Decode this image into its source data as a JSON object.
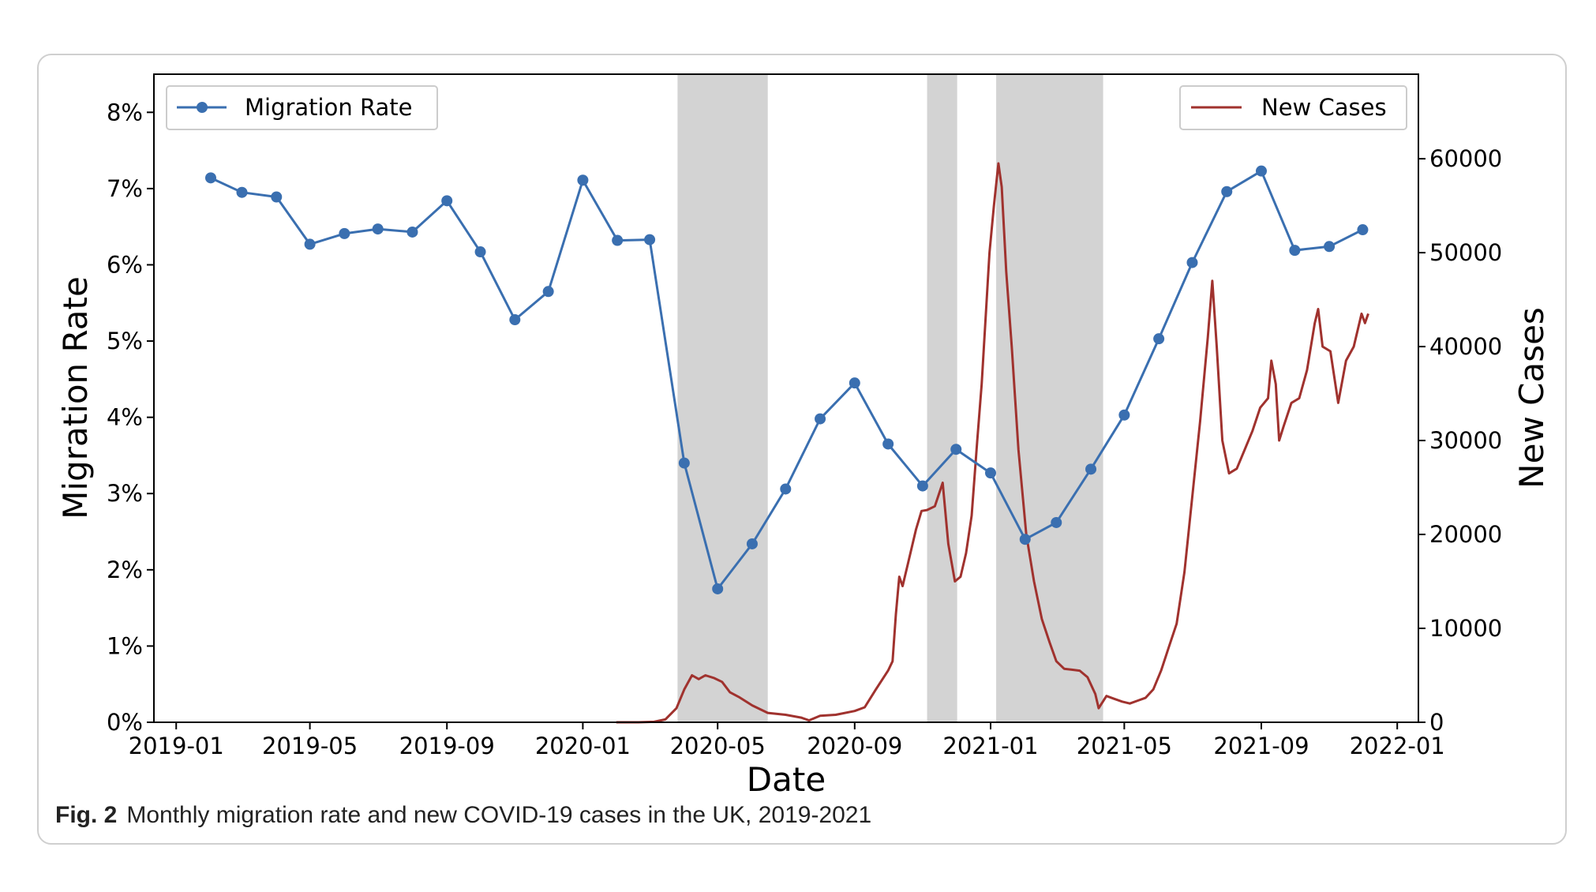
{
  "chart_data": {
    "type": "line",
    "xlabel": "Date",
    "ylabel_left": "Migration Rate",
    "ylabel_right": "New Cases",
    "x_ticks": [
      "2019-01",
      "2019-05",
      "2019-09",
      "2020-01",
      "2020-05",
      "2020-09",
      "2021-01",
      "2021-05",
      "2021-09",
      "2022-01"
    ],
    "y_left_ticks": [
      "0%",
      "1%",
      "2%",
      "3%",
      "4%",
      "5%",
      "6%",
      "7%",
      "8%"
    ],
    "y_left_lim": [
      0,
      8.5
    ],
    "y_right_ticks": [
      "0",
      "10000",
      "20000",
      "30000",
      "40000",
      "50000",
      "60000"
    ],
    "y_right_lim": [
      0,
      69000
    ],
    "x_lim": [
      "2018-12-12",
      "2022-01-20"
    ],
    "shaded_periods": [
      [
        "2020-03-26",
        "2020-06-15"
      ],
      [
        "2020-11-05",
        "2020-12-02"
      ],
      [
        "2021-01-06",
        "2021-04-12"
      ]
    ],
    "legend_left": {
      "label": "Migration Rate",
      "position": "upper left"
    },
    "legend_right": {
      "label": "New Cases",
      "position": "upper right"
    },
    "series": [
      {
        "name": "Migration Rate",
        "color": "#3a6fb0",
        "marker": "circle",
        "axis": "left",
        "points": [
          [
            "2019-02-01",
            7.14
          ],
          [
            "2019-03-01",
            6.95
          ],
          [
            "2019-04-01",
            6.89
          ],
          [
            "2019-05-01",
            6.27
          ],
          [
            "2019-06-01",
            6.41
          ],
          [
            "2019-07-01",
            6.47
          ],
          [
            "2019-08-01",
            6.43
          ],
          [
            "2019-09-01",
            6.84
          ],
          [
            "2019-10-01",
            6.17
          ],
          [
            "2019-11-01",
            5.28
          ],
          [
            "2019-12-01",
            5.65
          ],
          [
            "2020-01-01",
            7.11
          ],
          [
            "2020-02-01",
            6.32
          ],
          [
            "2020-03-01",
            6.33
          ],
          [
            "2020-04-01",
            3.4
          ],
          [
            "2020-05-01",
            1.75
          ],
          [
            "2020-06-01",
            2.34
          ],
          [
            "2020-07-01",
            3.06
          ],
          [
            "2020-08-01",
            3.98
          ],
          [
            "2020-09-01",
            4.45
          ],
          [
            "2020-10-01",
            3.65
          ],
          [
            "2020-11-01",
            3.1
          ],
          [
            "2020-12-01",
            3.58
          ],
          [
            "2021-01-01",
            3.27
          ],
          [
            "2021-02-01",
            2.4
          ],
          [
            "2021-03-01",
            2.62
          ],
          [
            "2021-04-01",
            3.32
          ],
          [
            "2021-05-01",
            4.03
          ],
          [
            "2021-06-01",
            5.03
          ],
          [
            "2021-07-01",
            6.03
          ],
          [
            "2021-08-01",
            6.96
          ],
          [
            "2021-09-01",
            7.23
          ],
          [
            "2021-10-01",
            6.19
          ],
          [
            "2021-11-01",
            6.24
          ],
          [
            "2021-12-01",
            6.46
          ]
        ]
      },
      {
        "name": "New Cases",
        "color": "#a0322e",
        "marker": "none",
        "axis": "right",
        "points": [
          [
            "2020-01-31",
            0
          ],
          [
            "2020-02-20",
            0
          ],
          [
            "2020-03-05",
            50
          ],
          [
            "2020-03-15",
            300
          ],
          [
            "2020-03-25",
            1500
          ],
          [
            "2020-04-01",
            3500
          ],
          [
            "2020-04-08",
            5000
          ],
          [
            "2020-04-14",
            4600
          ],
          [
            "2020-04-20",
            5000
          ],
          [
            "2020-04-28",
            4700
          ],
          [
            "2020-05-05",
            4300
          ],
          [
            "2020-05-12",
            3200
          ],
          [
            "2020-05-20",
            2700
          ],
          [
            "2020-06-01",
            1800
          ],
          [
            "2020-06-15",
            1000
          ],
          [
            "2020-07-01",
            800
          ],
          [
            "2020-07-15",
            500
          ],
          [
            "2020-07-22",
            200
          ],
          [
            "2020-08-01",
            700
          ],
          [
            "2020-08-15",
            800
          ],
          [
            "2020-09-01",
            1200
          ],
          [
            "2020-09-10",
            1600
          ],
          [
            "2020-09-20",
            3500
          ],
          [
            "2020-10-01",
            5500
          ],
          [
            "2020-10-05",
            6500
          ],
          [
            "2020-10-08",
            11500
          ],
          [
            "2020-10-11",
            15500
          ],
          [
            "2020-10-14",
            14500
          ],
          [
            "2020-10-19",
            17000
          ],
          [
            "2020-10-26",
            20500
          ],
          [
            "2020-10-31",
            22500
          ],
          [
            "2020-11-05",
            22600
          ],
          [
            "2020-11-12",
            23000
          ],
          [
            "2020-11-19",
            25500
          ],
          [
            "2020-11-24",
            19000
          ],
          [
            "2020-11-30",
            15000
          ],
          [
            "2020-12-05",
            15500
          ],
          [
            "2020-12-10",
            18000
          ],
          [
            "2020-12-15",
            22000
          ],
          [
            "2020-12-20",
            30000
          ],
          [
            "2020-12-24",
            36000
          ],
          [
            "2020-12-31",
            50000
          ],
          [
            "2021-01-04",
            55000
          ],
          [
            "2021-01-08",
            59500
          ],
          [
            "2021-01-11",
            57000
          ],
          [
            "2021-01-15",
            48000
          ],
          [
            "2021-01-20",
            40000
          ],
          [
            "2021-01-26",
            29000
          ],
          [
            "2021-02-02",
            20000
          ],
          [
            "2021-02-09",
            15000
          ],
          [
            "2021-02-16",
            11000
          ],
          [
            "2021-02-23",
            8500
          ],
          [
            "2021-03-01",
            6500
          ],
          [
            "2021-03-08",
            5700
          ],
          [
            "2021-03-15",
            5600
          ],
          [
            "2021-03-22",
            5500
          ],
          [
            "2021-03-29",
            4800
          ],
          [
            "2021-04-05",
            3000
          ],
          [
            "2021-04-08",
            1500
          ],
          [
            "2021-04-15",
            2800
          ],
          [
            "2021-04-22",
            2500
          ],
          [
            "2021-04-29",
            2200
          ],
          [
            "2021-05-06",
            2000
          ],
          [
            "2021-05-13",
            2300
          ],
          [
            "2021-05-20",
            2600
          ],
          [
            "2021-05-27",
            3500
          ],
          [
            "2021-06-03",
            5500
          ],
          [
            "2021-06-10",
            8000
          ],
          [
            "2021-06-17",
            10500
          ],
          [
            "2021-06-24",
            16000
          ],
          [
            "2021-07-01",
            24000
          ],
          [
            "2021-07-08",
            32000
          ],
          [
            "2021-07-15",
            41000
          ],
          [
            "2021-07-19",
            47000
          ],
          [
            "2021-07-23",
            40000
          ],
          [
            "2021-07-28",
            30000
          ],
          [
            "2021-08-03",
            26500
          ],
          [
            "2021-08-10",
            27000
          ],
          [
            "2021-08-17",
            29000
          ],
          [
            "2021-08-24",
            31000
          ],
          [
            "2021-08-31",
            33500
          ],
          [
            "2021-09-07",
            34500
          ],
          [
            "2021-09-10",
            38500
          ],
          [
            "2021-09-14",
            36000
          ],
          [
            "2021-09-17",
            30000
          ],
          [
            "2021-09-21",
            31500
          ],
          [
            "2021-09-28",
            34000
          ],
          [
            "2021-10-05",
            34500
          ],
          [
            "2021-10-12",
            37500
          ],
          [
            "2021-10-19",
            42500
          ],
          [
            "2021-10-22",
            44000
          ],
          [
            "2021-10-26",
            40000
          ],
          [
            "2021-11-02",
            39500
          ],
          [
            "2021-11-09",
            34000
          ],
          [
            "2021-11-16",
            38500
          ],
          [
            "2021-11-23",
            40000
          ],
          [
            "2021-11-30",
            43500
          ],
          [
            "2021-12-03",
            42500
          ],
          [
            "2021-12-06",
            43500
          ]
        ]
      }
    ],
    "shade_color": "#d3d3d3"
  },
  "caption": {
    "label": "Fig. 2",
    "text": "Monthly migration rate and new COVID-19 cases in the UK, 2019-2021"
  }
}
